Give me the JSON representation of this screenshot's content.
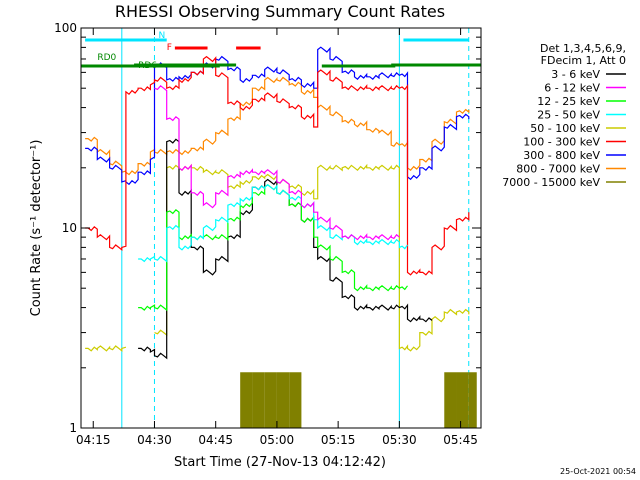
{
  "chart_data": {
    "type": "line",
    "title": "RHESSI Observing Summary Count Rates",
    "xlabel": "Start Time (27-Nov-13 04:12:42)",
    "ylabel": "Count Rate (s⁻¹ detector⁻¹)",
    "y_scale": "log",
    "ylim": [
      1,
      100
    ],
    "y_ticks": [
      "1",
      "10",
      "100"
    ],
    "xlim": [
      "04:12",
      "05:50"
    ],
    "x_ticks": [
      "04:15",
      "04:30",
      "04:45",
      "05:00",
      "05:15",
      "05:30",
      "05:45"
    ],
    "timestamp": "25-Oct-2021 00:54",
    "grid": false,
    "legend_placement": "right",
    "legend_header": [
      "Det 1,3,4,5,6,9,",
      "FDecim 1, Att 0"
    ],
    "flags": {
      "N": {
        "label": "N",
        "color": "#00e5ff",
        "intervals": [
          [
            "04:13",
            "04:33"
          ],
          [
            "05:31",
            "05:47"
          ]
        ]
      },
      "F": {
        "label": "F",
        "color": "#ff0000",
        "intervals": [
          [
            "04:35",
            "04:43"
          ],
          [
            "04:50",
            "04:56"
          ]
        ]
      },
      "RD0": {
        "label": "RD0",
        "color": "#008800",
        "intervals": [
          [
            "04:12",
            "04:46"
          ],
          [
            "05:11",
            "05:29"
          ]
        ]
      },
      "RD6": {
        "label": "RD6",
        "color": "#008800",
        "intervals": [
          [
            "04:25",
            "04:50"
          ],
          [
            "05:28",
            "05:50"
          ]
        ]
      }
    },
    "vertical_markers": [
      {
        "time": "04:22",
        "style": "solid",
        "color": "#00e5ff"
      },
      {
        "time": "04:30",
        "style": "dashed",
        "color": "#00e5ff"
      },
      {
        "time": "05:30",
        "style": "solid",
        "color": "#00e5ff"
      },
      {
        "time": "05:47",
        "style": "dashed",
        "color": "#00e5ff"
      }
    ],
    "x": [
      "04:13",
      "04:16",
      "04:19",
      "04:22",
      "04:23",
      "04:26",
      "04:29",
      "04:30",
      "04:33",
      "04:36",
      "04:39",
      "04:42",
      "04:45",
      "04:48",
      "04:51",
      "04:54",
      "04:57",
      "05:00",
      "05:03",
      "05:06",
      "05:09",
      "05:10",
      "05:13",
      "05:16",
      "05:19",
      "05:22",
      "05:25",
      "05:28",
      "05:30",
      "05:32",
      "05:35",
      "05:38",
      "05:41",
      "05:44",
      "05:47"
    ],
    "series": [
      {
        "name": "3 - 6 keV",
        "color": "#000000",
        "values": [
          null,
          null,
          null,
          null,
          null,
          2.5,
          2.4,
          2.3,
          27,
          15,
          8,
          6,
          7,
          9,
          12,
          16,
          17,
          15,
          13,
          11,
          8,
          7,
          5.5,
          4.5,
          4,
          4,
          4,
          4,
          4,
          3.5,
          3.5,
          null,
          null,
          null,
          null
        ]
      },
      {
        "name": "6 - 12 keV",
        "color": "#ff00ff",
        "values": [
          null,
          null,
          null,
          null,
          null,
          null,
          null,
          50,
          35,
          20,
          15,
          13,
          15,
          18,
          19,
          19,
          19,
          17,
          15,
          13,
          12,
          11,
          10,
          9,
          9,
          9,
          9,
          9,
          null,
          null,
          null,
          null,
          null,
          null,
          null
        ]
      },
      {
        "name": "12 - 25 keV",
        "color": "#00ff00",
        "values": [
          null,
          null,
          null,
          null,
          null,
          4,
          4,
          4,
          12,
          9,
          9,
          9,
          9,
          11,
          13,
          15,
          16,
          15,
          13,
          11,
          9,
          8,
          7,
          6,
          5,
          5,
          5,
          5,
          5,
          null,
          null,
          null,
          null,
          null,
          null
        ]
      },
      {
        "name": "25 - 50 keV",
        "color": "#00ffff",
        "values": [
          null,
          null,
          null,
          null,
          null,
          7,
          7,
          7,
          10,
          8,
          9,
          10,
          11,
          13,
          14,
          16,
          16,
          15,
          14,
          13,
          11,
          10,
          9,
          9,
          8.5,
          8.5,
          8.5,
          8.5,
          8,
          null,
          null,
          null,
          null,
          null,
          null
        ]
      },
      {
        "name": "50 - 100 keV",
        "color": "#cccc00",
        "values": [
          2.5,
          2.5,
          2.5,
          2.5,
          null,
          null,
          null,
          3,
          20,
          20,
          20,
          19,
          19,
          16,
          17,
          18,
          18,
          17,
          16,
          15,
          14,
          20,
          20,
          20,
          20,
          20,
          20,
          20,
          2.5,
          2.5,
          3,
          3.5,
          3.8,
          3.8,
          3.8
        ]
      },
      {
        "name": "100 - 300 keV",
        "color": "#ff0000",
        "values": [
          10,
          9,
          8,
          8,
          48,
          50,
          52,
          55,
          50,
          55,
          60,
          70,
          58,
          42,
          40,
          44,
          46,
          43,
          40,
          36,
          32,
          60,
          55,
          50,
          50,
          50,
          50,
          50,
          50,
          6,
          6,
          8,
          10,
          11,
          12
        ]
      },
      {
        "name": "300 - 800 keV",
        "color": "#0000ff",
        "values": [
          25,
          22,
          20,
          17,
          17,
          19,
          22,
          65,
          55,
          57,
          60,
          65,
          70,
          62,
          55,
          58,
          62,
          60,
          55,
          52,
          50,
          78,
          70,
          60,
          57,
          57,
          58,
          58,
          58,
          18,
          20,
          25,
          32,
          36,
          36
        ]
      },
      {
        "name": "800 - 7000 keV",
        "color": "#ff8800",
        "values": [
          28,
          24,
          21,
          19,
          19,
          21,
          24,
          24,
          24,
          24,
          25,
          27,
          30,
          35,
          42,
          50,
          55,
          55,
          52,
          48,
          45,
          40,
          37,
          34,
          33,
          31,
          30,
          26,
          26,
          20,
          22,
          27,
          34,
          38,
          39
        ]
      },
      {
        "name": "7000 - 15000 keV",
        "color": "#808000",
        "values": [
          null,
          null,
          null,
          null,
          null,
          null,
          null,
          null,
          null,
          null,
          null,
          null,
          null,
          null,
          1.9,
          1.9,
          1.9,
          1.9,
          1.9,
          null,
          null,
          null,
          null,
          null,
          null,
          null,
          null,
          null,
          null,
          null,
          null,
          null,
          1.9,
          1.9,
          1.9
        ]
      }
    ]
  }
}
